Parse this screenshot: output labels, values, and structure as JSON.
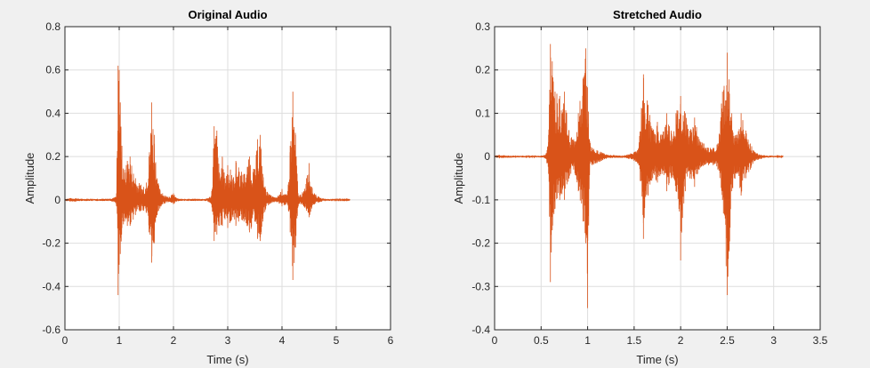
{
  "figure": {
    "background": "#f0f0f0",
    "plot_background": "#ffffff",
    "grid_color": "#dedede",
    "axis_color": "#262626"
  },
  "chart_data": [
    {
      "type": "line",
      "title": "Original Audio",
      "xlabel": "Time (s)",
      "ylabel": "Amplitude",
      "xlim": [
        0,
        6
      ],
      "ylim": [
        -0.6,
        0.8
      ],
      "xticks": [
        0,
        1,
        2,
        3,
        4,
        5,
        6
      ],
      "yticks": [
        -0.6,
        -0.4,
        -0.2,
        0,
        0.2,
        0.4,
        0.6,
        0.8
      ],
      "grid": true,
      "legend": "none",
      "series": [
        {
          "color": "#d95319",
          "signal_end_time": 5.25,
          "envelope": {
            "time": [
              0,
              0.1,
              0.2,
              0.3,
              0.4,
              0.5,
              0.6,
              0.7,
              0.8,
              0.9,
              0.95,
              0.98,
              1.0,
              1.02,
              1.05,
              1.1,
              1.15,
              1.2,
              1.3,
              1.4,
              1.45,
              1.5,
              1.55,
              1.6,
              1.65,
              1.7,
              1.75,
              1.8,
              1.85,
              1.9,
              2.0,
              2.05,
              2.1,
              2.2,
              2.4,
              2.6,
              2.7,
              2.75,
              2.8,
              2.85,
              2.9,
              2.95,
              3.0,
              3.05,
              3.1,
              3.15,
              3.2,
              3.3,
              3.4,
              3.5,
              3.55,
              3.6,
              3.65,
              3.7,
              3.75,
              3.8,
              3.9,
              4.0,
              4.1,
              4.15,
              4.2,
              4.25,
              4.3,
              4.4,
              4.45,
              4.5,
              4.55,
              4.6,
              4.7,
              4.8,
              5.0,
              5.25
            ],
            "upper": [
              0.005,
              0.008,
              0.008,
              0.005,
              0.005,
              0.005,
              0.005,
              0.005,
              0.005,
              0.01,
              0.03,
              0.62,
              0.6,
              0.45,
              0.25,
              0.14,
              0.18,
              0.2,
              0.1,
              0.07,
              0.06,
              0.08,
              0.2,
              0.45,
              0.3,
              0.1,
              0.05,
              0.03,
              0.02,
              0.015,
              0.03,
              0.01,
              0.005,
              0.005,
              0.005,
              0.005,
              0.02,
              0.34,
              0.32,
              0.12,
              0.2,
              0.1,
              0.16,
              0.14,
              0.1,
              0.18,
              0.15,
              0.12,
              0.2,
              0.14,
              0.28,
              0.3,
              0.12,
              0.05,
              0.03,
              0.02,
              0.01,
              0.05,
              0.02,
              0.25,
              0.5,
              0.3,
              0.02,
              0.04,
              0.1,
              0.17,
              0.06,
              0.03,
              0.01,
              0.005,
              0.003,
              0.002
            ],
            "lower": [
              -0.005,
              -0.008,
              -0.008,
              -0.005,
              -0.005,
              -0.005,
              -0.005,
              -0.005,
              -0.005,
              -0.01,
              -0.03,
              -0.44,
              -0.3,
              -0.25,
              -0.13,
              -0.1,
              -0.12,
              -0.12,
              -0.07,
              -0.05,
              -0.05,
              -0.06,
              -0.15,
              -0.29,
              -0.2,
              -0.07,
              -0.04,
              -0.02,
              -0.015,
              -0.01,
              -0.02,
              -0.008,
              -0.005,
              -0.005,
              -0.005,
              -0.005,
              -0.02,
              -0.19,
              -0.16,
              -0.12,
              -0.12,
              -0.09,
              -0.13,
              -0.1,
              -0.08,
              -0.12,
              -0.1,
              -0.1,
              -0.15,
              -0.1,
              -0.18,
              -0.19,
              -0.1,
              -0.04,
              -0.025,
              -0.015,
              -0.01,
              -0.03,
              -0.02,
              -0.15,
              -0.37,
              -0.22,
              -0.02,
              -0.03,
              -0.05,
              -0.08,
              -0.04,
              -0.02,
              -0.01,
              -0.005,
              -0.003,
              -0.002
            ]
          }
        }
      ]
    },
    {
      "type": "line",
      "title": "Stretched Audio",
      "xlabel": "Time (s)",
      "ylabel": "Amplitude",
      "xlim": [
        0,
        3.5
      ],
      "ylim": [
        -0.4,
        0.3
      ],
      "xticks": [
        0,
        0.5,
        1,
        1.5,
        2,
        2.5,
        3,
        3.5
      ],
      "yticks": [
        -0.4,
        -0.3,
        -0.2,
        -0.1,
        0,
        0.1,
        0.2,
        0.3
      ],
      "grid": true,
      "legend": "none",
      "series": [
        {
          "color": "#d95319",
          "signal_end_time": 3.1,
          "envelope": {
            "time": [
              0,
              0.05,
              0.1,
              0.2,
              0.3,
              0.4,
              0.5,
              0.55,
              0.58,
              0.6,
              0.62,
              0.65,
              0.7,
              0.75,
              0.8,
              0.85,
              0.9,
              0.95,
              0.98,
              1.0,
              1.02,
              1.05,
              1.1,
              1.15,
              1.2,
              1.3,
              1.4,
              1.5,
              1.55,
              1.6,
              1.65,
              1.7,
              1.75,
              1.8,
              1.85,
              1.9,
              1.95,
              2.0,
              2.05,
              2.1,
              2.15,
              2.2,
              2.25,
              2.3,
              2.35,
              2.4,
              2.45,
              2.5,
              2.55,
              2.6,
              2.65,
              2.7,
              2.75,
              2.8,
              2.9,
              3.1
            ],
            "upper": [
              0.002,
              0.004,
              0.003,
              0.002,
              0.002,
              0.002,
              0.002,
              0.005,
              0.05,
              0.26,
              0.22,
              0.15,
              0.14,
              0.15,
              0.06,
              0.04,
              0.1,
              0.18,
              0.25,
              0.16,
              0.04,
              0.02,
              0.015,
              0.01,
              0.005,
              0.003,
              0.003,
              0.01,
              0.02,
              0.19,
              0.12,
              0.06,
              0.08,
              0.05,
              0.1,
              0.06,
              0.1,
              0.14,
              0.1,
              0.06,
              0.09,
              0.04,
              0.03,
              0.02,
              0.02,
              0.03,
              0.15,
              0.24,
              0.1,
              0.05,
              0.1,
              0.06,
              0.03,
              0.01,
              0.003,
              0.001
            ],
            "lower": [
              -0.002,
              -0.004,
              -0.003,
              -0.002,
              -0.002,
              -0.002,
              -0.002,
              -0.005,
              -0.04,
              -0.29,
              -0.17,
              -0.12,
              -0.1,
              -0.1,
              -0.05,
              -0.03,
              -0.08,
              -0.15,
              -0.2,
              -0.35,
              -0.03,
              -0.02,
              -0.015,
              -0.01,
              -0.005,
              -0.003,
              -0.003,
              -0.01,
              -0.02,
              -0.19,
              -0.09,
              -0.05,
              -0.06,
              -0.04,
              -0.08,
              -0.05,
              -0.08,
              -0.24,
              -0.08,
              -0.05,
              -0.07,
              -0.03,
              -0.02,
              -0.02,
              -0.02,
              -0.03,
              -0.1,
              -0.32,
              -0.08,
              -0.04,
              -0.09,
              -0.05,
              -0.03,
              -0.01,
              -0.003,
              -0.001
            ]
          }
        }
      ]
    }
  ]
}
